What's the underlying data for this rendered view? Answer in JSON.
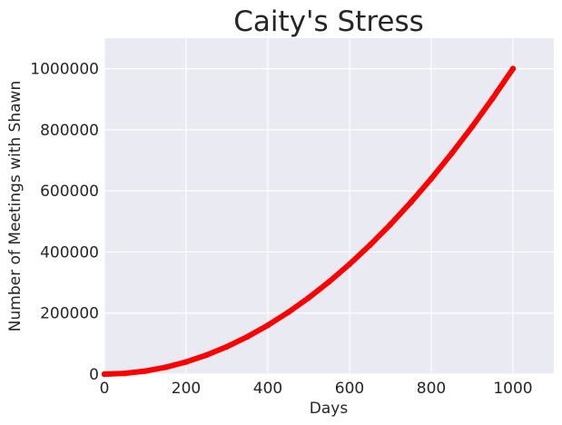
{
  "chart_data": {
    "type": "scatter",
    "title": "Caity's Stress",
    "xlabel": "Days",
    "ylabel": "Number of Meetings with Shawn",
    "xlim": [
      0,
      1100
    ],
    "ylim": [
      0,
      1100000
    ],
    "xticks": [
      0,
      200,
      400,
      600,
      800,
      1000
    ],
    "xtick_labels": [
      "0",
      "200",
      "400",
      "600",
      "800",
      "1000"
    ],
    "yticks": [
      0,
      200000,
      400000,
      600000,
      800000,
      1000000
    ],
    "ytick_labels": [
      "0",
      "200000",
      "400000",
      "600000",
      "800000",
      "1000000"
    ],
    "grid": true,
    "series": [
      {
        "color": "#ff0000",
        "marker": "dense points",
        "x": [
          0,
          50,
          100,
          150,
          200,
          250,
          300,
          350,
          400,
          450,
          500,
          550,
          600,
          650,
          700,
          750,
          800,
          850,
          900,
          950,
          1000
        ],
        "y": [
          0,
          2500,
          10000,
          22500,
          40000,
          62500,
          90000,
          122500,
          160000,
          202500,
          250000,
          302500,
          360000,
          422500,
          490000,
          562500,
          640000,
          722500,
          810000,
          902500,
          1000000
        ]
      }
    ]
  },
  "colors": {
    "plot_background": "#eaeaf2",
    "grid": "#ffffff",
    "series": "#ff0000"
  }
}
